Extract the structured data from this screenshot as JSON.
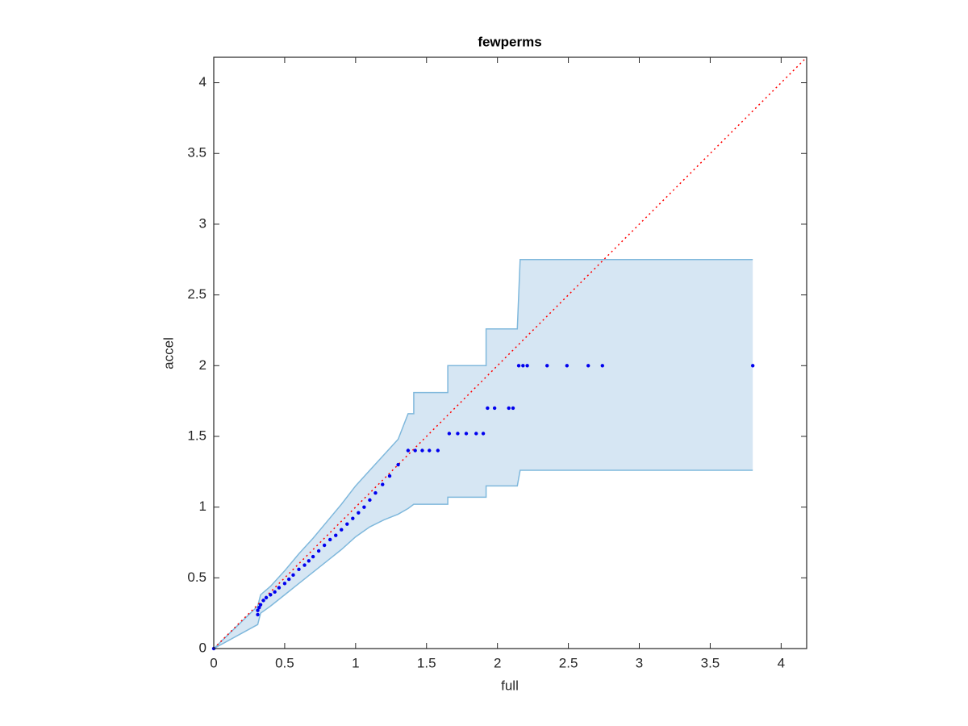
{
  "chart_data": {
    "type": "scatter",
    "title": "fewperms",
    "xlabel": "full",
    "ylabel": "accel",
    "xlim": [
      0,
      4.18
    ],
    "ylim": [
      0,
      4.18
    ],
    "xticks": [
      0,
      0.5,
      1,
      1.5,
      2,
      2.5,
      3,
      3.5,
      4
    ],
    "yticks": [
      0,
      0.5,
      1,
      1.5,
      2,
      2.5,
      3,
      3.5,
      4
    ],
    "band": {
      "color": "#d6e6f3",
      "edge_color": "#7fb8dc",
      "x": [
        0,
        0.31,
        0.33,
        0.4,
        0.5,
        0.6,
        0.7,
        0.8,
        0.9,
        1.0,
        1.1,
        1.2,
        1.3,
        1.37,
        1.41,
        1.41,
        1.65,
        1.65,
        1.92,
        1.92,
        2.14,
        2.16,
        3.8
      ],
      "upper": [
        0,
        0.3,
        0.38,
        0.44,
        0.55,
        0.67,
        0.78,
        0.9,
        1.02,
        1.15,
        1.26,
        1.37,
        1.48,
        1.66,
        1.66,
        1.81,
        1.81,
        2.0,
        2.0,
        2.26,
        2.26,
        2.75,
        2.75
      ],
      "lower": [
        0,
        0.17,
        0.25,
        0.3,
        0.38,
        0.46,
        0.54,
        0.62,
        0.7,
        0.79,
        0.86,
        0.91,
        0.95,
        0.99,
        1.02,
        1.02,
        1.02,
        1.07,
        1.07,
        1.15,
        1.15,
        1.26,
        1.26
      ]
    },
    "reference_line": {
      "color": "#ff0000",
      "style": "dotted",
      "x": [
        0,
        4.18
      ],
      "values": [
        0,
        4.18
      ]
    },
    "points": {
      "color": "#0000ee",
      "x": [
        0,
        0.31,
        0.31,
        0.32,
        0.33,
        0.35,
        0.37,
        0.4,
        0.43,
        0.46,
        0.5,
        0.53,
        0.56,
        0.6,
        0.64,
        0.67,
        0.7,
        0.74,
        0.78,
        0.82,
        0.86,
        0.9,
        0.94,
        0.98,
        1.02,
        1.06,
        1.1,
        1.14,
        1.19,
        1.24,
        1.3,
        1.37,
        1.42,
        1.47,
        1.52,
        1.58,
        1.66,
        1.72,
        1.78,
        1.85,
        1.9,
        1.93,
        1.98,
        2.08,
        2.11,
        2.15,
        2.18,
        2.21,
        2.35,
        2.49,
        2.64,
        2.74,
        3.8
      ],
      "values": [
        0,
        0.24,
        0.27,
        0.29,
        0.31,
        0.34,
        0.36,
        0.38,
        0.4,
        0.43,
        0.46,
        0.49,
        0.52,
        0.56,
        0.59,
        0.62,
        0.65,
        0.69,
        0.73,
        0.77,
        0.8,
        0.84,
        0.88,
        0.92,
        0.96,
        1.0,
        1.05,
        1.1,
        1.16,
        1.22,
        1.3,
        1.4,
        1.4,
        1.4,
        1.4,
        1.4,
        1.52,
        1.52,
        1.52,
        1.52,
        1.52,
        1.7,
        1.7,
        1.7,
        1.7,
        2.0,
        2.0,
        2.0,
        2.0,
        2.0,
        2.0,
        2.0,
        2.0
      ]
    }
  }
}
